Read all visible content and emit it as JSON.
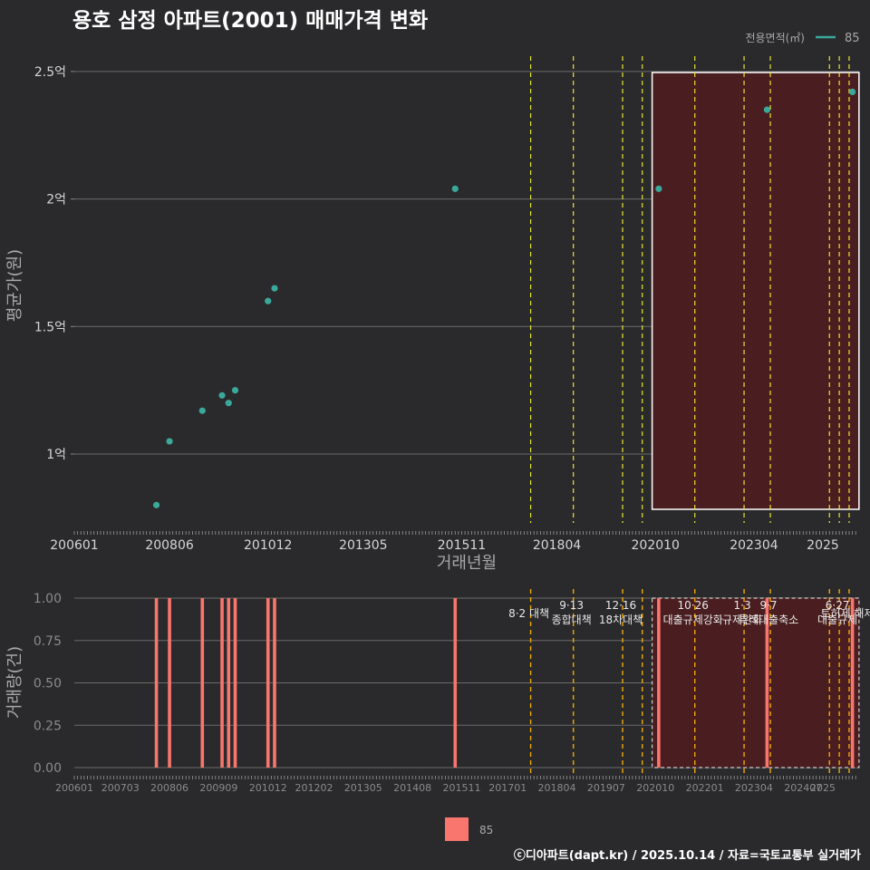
{
  "chart_data": [
    {
      "type": "scatter",
      "title": "용호 삼정 아파트(2001) 매매가격 변화",
      "legend_title": "전용면적(㎡)",
      "legend_label": "85",
      "xlabel": "거래년월",
      "ylabel": "평균가(원)",
      "x_tick_labels": [
        "200601",
        "200806",
        "201012",
        "201305",
        "201511",
        "201804",
        "202010",
        "202304",
        "2025"
      ],
      "y_ticks": [
        {
          "value": 1.0,
          "label": "1억"
        },
        {
          "value": 1.5,
          "label": "1.5억"
        },
        {
          "value": 2.0,
          "label": "2억"
        },
        {
          "value": 2.5,
          "label": "2.5억"
        }
      ],
      "ylim": [
        0.73,
        2.56
      ],
      "points": [
        {
          "x": "2008-02",
          "y": 0.8
        },
        {
          "x": "2008-06",
          "y": 1.05
        },
        {
          "x": "2009-04",
          "y": 1.17
        },
        {
          "x": "2009-10",
          "y": 1.23
        },
        {
          "x": "2009-12",
          "y": 1.2
        },
        {
          "x": "2010-02",
          "y": 1.25
        },
        {
          "x": "2010-12",
          "y": 1.6
        },
        {
          "x": "2011-02",
          "y": 1.65
        },
        {
          "x": "2015-09",
          "y": 2.04
        },
        {
          "x": "2020-11",
          "y": 2.04
        },
        {
          "x": "2023-08",
          "y": 2.35
        },
        {
          "x": "2025-10",
          "y": 2.42
        }
      ]
    },
    {
      "type": "bar",
      "ylabel": "거래량(건)",
      "y_tick_labels": [
        "0.00",
        "0.25",
        "0.50",
        "0.75",
        "1.00"
      ],
      "ylim": [
        0,
        1
      ],
      "x_tick_labels": [
        "200601",
        "200703",
        "200806",
        "200909",
        "201012",
        "201202",
        "201305",
        "201408",
        "201511",
        "201701",
        "201804",
        "201907",
        "202010",
        "202201",
        "202304",
        "202407",
        "2025"
      ],
      "legend_label": "85",
      "bars": [
        {
          "x": "2008-02",
          "value": 1
        },
        {
          "x": "2008-06",
          "value": 1
        },
        {
          "x": "2009-04",
          "value": 1
        },
        {
          "x": "2009-10",
          "value": 1
        },
        {
          "x": "2009-12",
          "value": 1
        },
        {
          "x": "2010-02",
          "value": 1
        },
        {
          "x": "2010-12",
          "value": 1
        },
        {
          "x": "2011-02",
          "value": 1
        },
        {
          "x": "2015-09",
          "value": 1
        },
        {
          "x": "2020-11",
          "value": 1
        },
        {
          "x": "2023-08",
          "value": 1
        },
        {
          "x": "2025-10",
          "value": 1
        }
      ],
      "policy_events": [
        {
          "date": "2017-08",
          "label": "8·2 대책"
        },
        {
          "date": "2018-09",
          "label": "9·13\n종합대책"
        },
        {
          "date": "2019-12",
          "label": "12·16\n18차대책"
        },
        {
          "date": "2020-06",
          "label": ""
        },
        {
          "date": "2021-10",
          "label": "10·26\n대출규제강화"
        },
        {
          "date": "2023-01",
          "label": "1·3\n규제완화"
        },
        {
          "date": "2023-09",
          "label": "9·7\n특례대출축소"
        },
        {
          "date": "2025-03",
          "label": ""
        },
        {
          "date": "2025-06",
          "label": "6·27\n대출규제"
        },
        {
          "date": "2025-09",
          "label": "토허제 해제"
        }
      ],
      "highlight_range": [
        "2020-09",
        "2025-12"
      ]
    }
  ],
  "footer": {
    "credit": "ⓒ디아파트(dapt.kr) / 2025.10.14 / 자료=국토교통부 실거래가"
  },
  "colors": {
    "background": "#2a2a2c",
    "point": "#3aa89a",
    "bar": "#f8766d",
    "highlight_fill": "#4a1e20",
    "policy_line_top": "#e6e62e",
    "policy_line_bottom": "#f0a800"
  }
}
